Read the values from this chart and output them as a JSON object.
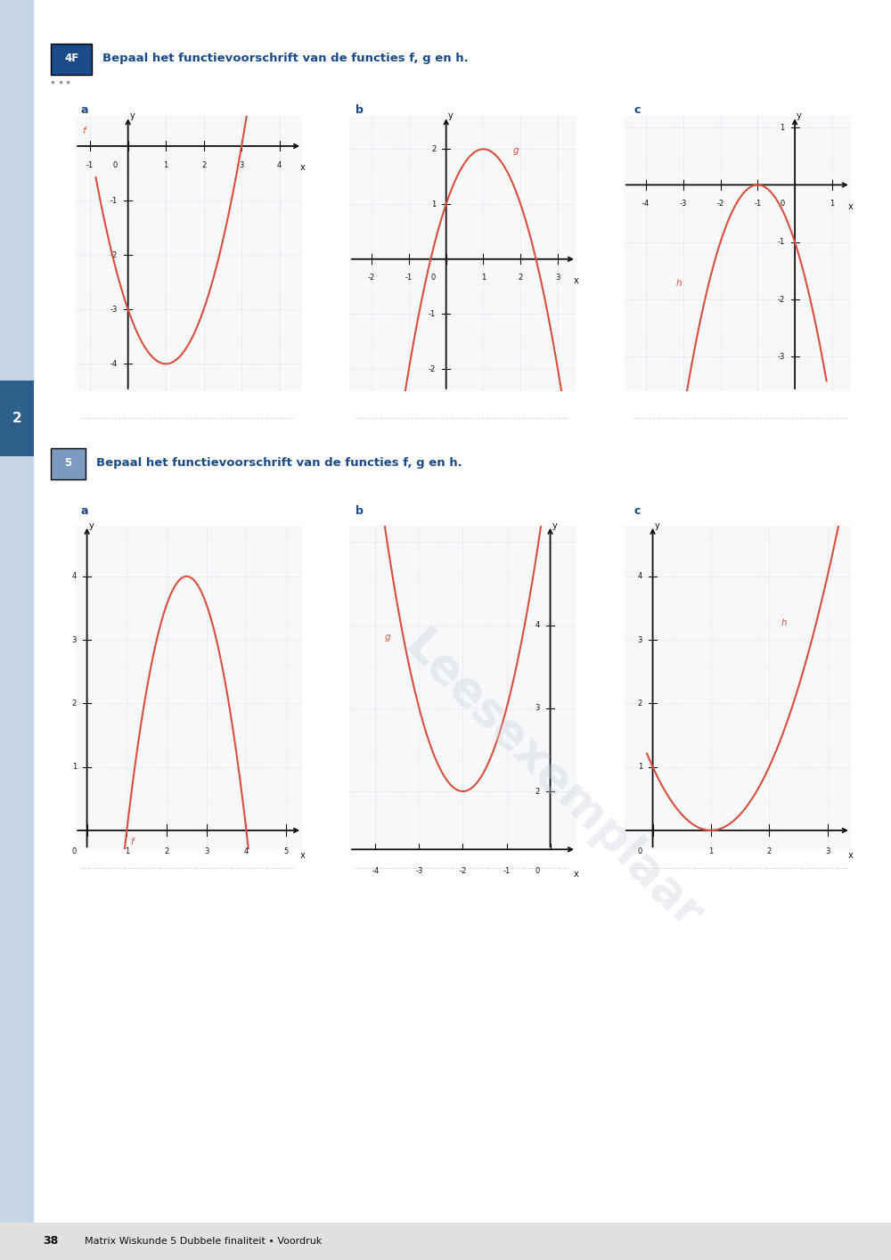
{
  "page_bg": "#ffffff",
  "sidebar_color": "#c5d5e5",
  "sidebar_dark": "#2e5f8a",
  "curve_color": "#d94f3d",
  "axis_color": "#111111",
  "grid_color": "#c0c8d8",
  "label_color": "#1a4a8a",
  "badge_color_4F": "#1a4a8a",
  "badge_color_5": "#7a9abf",
  "footer_bg": "#e0e0e0",
  "title_4F": "Bepaal het functievoorschrift van de functies f, g en h.",
  "title_5": "Bepaal het functievoorschrift van de functies f, g en h.",
  "badge_4F": "4F",
  "badge_5": "5",
  "footer_text": "Matrix Wiskunde 5 Dubbele finaliteit • Voordruk",
  "page_number": "38",
  "dot_color": "#999999",
  "answer_line_color": "#aaaaaa",
  "watermark_color": "#c8d0dc"
}
